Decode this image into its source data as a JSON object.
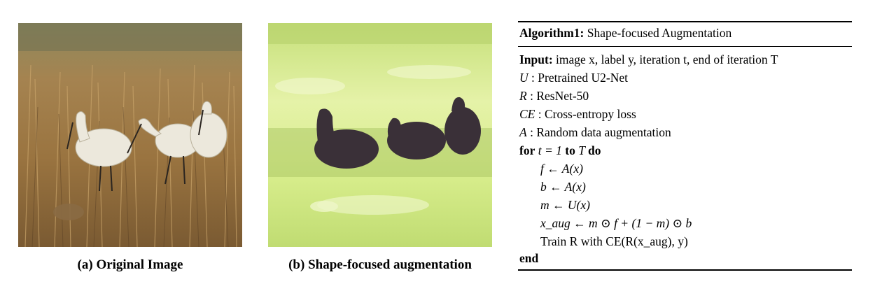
{
  "figure": {
    "panel_a": {
      "label": "(a)",
      "caption": "Original Image"
    },
    "panel_b": {
      "label": "(b)",
      "caption": "Shape-focused augmentation"
    }
  },
  "algorithm": {
    "title_bold": "Algorithm1:",
    "title_rest": " Shape-focused Augmentation",
    "input_label": "Input:",
    "input_text": " image x, label y, iteration t, end of iteration T",
    "defs": [
      {
        "sym": "U",
        "text": " : Pretrained U2-Net"
      },
      {
        "sym": "R",
        "text": " : ResNet-50"
      },
      {
        "sym": "CE",
        "text": " : Cross-entropy loss"
      },
      {
        "sym": "A",
        "text": " : Random data augmentation"
      }
    ],
    "loop_for": "for",
    "loop_cond": " t = 1 ",
    "loop_to": "to",
    "loop_T": " T ",
    "loop_do": "do",
    "body": [
      "f ← A(x)",
      "b ← A(x)",
      "m ← U(x)",
      "x_aug ← m ⊙ f + (1 − m) ⊙ b",
      "Train R with CE(R(x_aug), y)"
    ],
    "end": "end"
  },
  "colors": {
    "grass_dry": "#a07c44",
    "grass_green": "#d8ec8e",
    "bird_white": "#ece8dc",
    "bird_dark": "#3a3038"
  }
}
